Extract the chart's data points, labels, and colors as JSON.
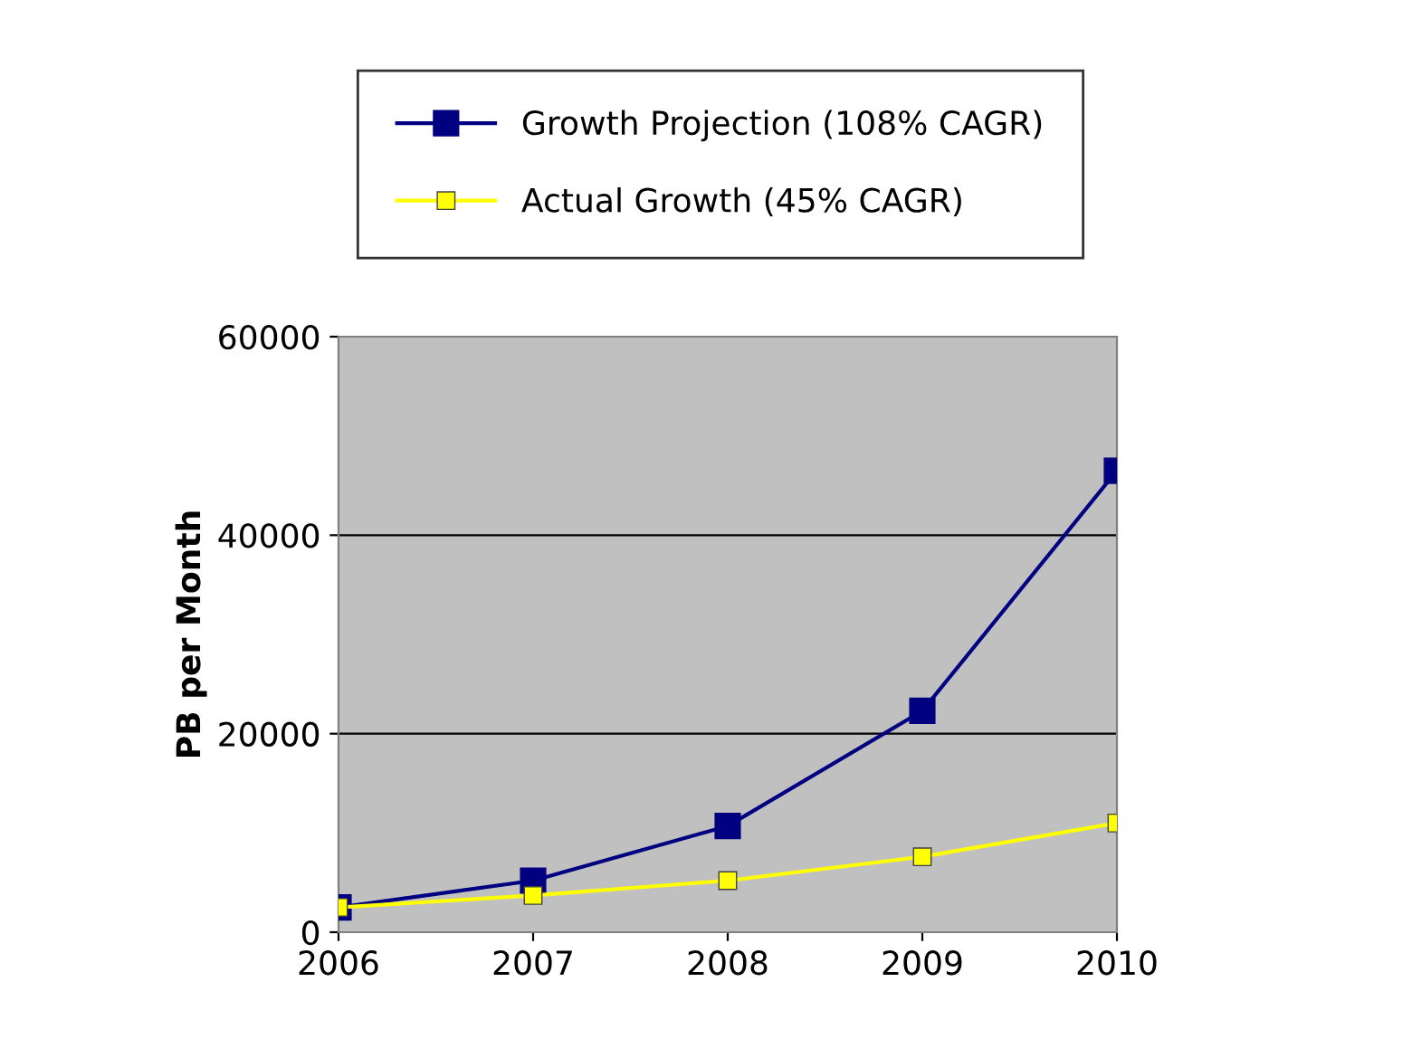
{
  "chart_data": {
    "type": "line",
    "ylabel": "PB per Month",
    "x": [
      2006,
      2007,
      2008,
      2009,
      2010
    ],
    "series": [
      {
        "name": "Growth Projection (108% CAGR)",
        "color": "#000080",
        "values": [
          2500,
          5200,
          10700,
          22300,
          46500
        ]
      },
      {
        "name": "Actual Growth (45% CAGR)",
        "color": "#ffff00",
        "values": [
          2500,
          3700,
          5200,
          7600,
          11000
        ]
      }
    ],
    "xlim": [
      2006,
      2010
    ],
    "xticks": [
      2006,
      2007,
      2008,
      2009,
      2010
    ],
    "ylim": [
      0,
      60000
    ],
    "yticks": [
      0,
      20000,
      40000,
      60000
    ],
    "grid": "y",
    "legend": "top",
    "marker": "square",
    "line_style": "solid"
  }
}
